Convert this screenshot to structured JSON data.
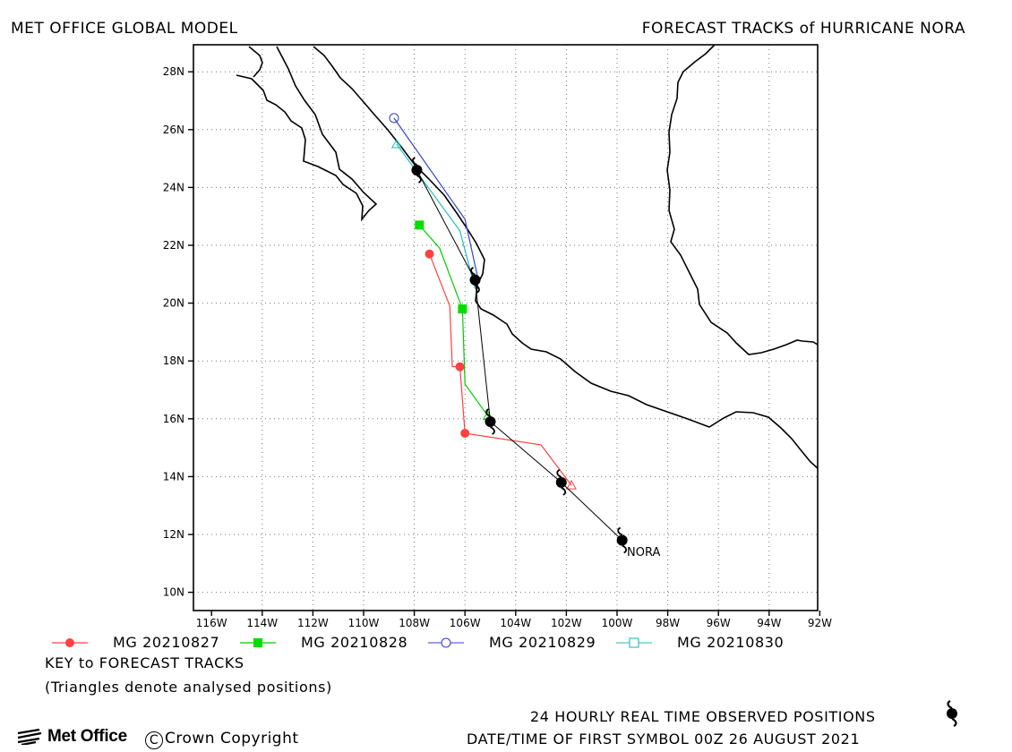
{
  "header": {
    "left": "MET OFFICE GLOBAL MODEL",
    "right": "FORECAST TRACKS of HURRICANE NORA"
  },
  "map": {
    "lon_range": [
      -117,
      -92
    ],
    "lat_range": [
      9.4,
      28.8
    ],
    "lat_ticks": [
      "10N",
      "12N",
      "14N",
      "16N",
      "18N",
      "20N",
      "22N",
      "24N",
      "26N",
      "28N"
    ],
    "lon_ticks": [
      "116W",
      "114W",
      "112W",
      "110W",
      "108W",
      "106W",
      "104W",
      "102W",
      "100W",
      "98W",
      "96W",
      "94W",
      "92W"
    ],
    "storm_label": "NORA",
    "gridlines": "dotted"
  },
  "colors": {
    "mg0827": "#ff4040",
    "mg0828": "#00cc00",
    "mg0829": "#3344cc",
    "mg0830": "#22bbbb",
    "observed": "#000000"
  },
  "observed_positions": [
    {
      "lon": -99.8,
      "lat": 11.8
    },
    {
      "lon": -102.2,
      "lat": 13.8
    },
    {
      "lon": -105.0,
      "lat": 15.9
    },
    {
      "lon": -105.6,
      "lat": 20.8
    },
    {
      "lon": -107.9,
      "lat": 24.6
    }
  ],
  "forecast_tracks": [
    {
      "name": "MG 20210827",
      "symbol": "circle-filled",
      "color_key": "mg0827",
      "points": [
        [
          -101.8,
          13.7
        ],
        [
          -103.0,
          15.1
        ],
        [
          -106.0,
          15.5
        ],
        [
          -106.2,
          17.8
        ],
        [
          -106.5,
          17.8
        ],
        [
          -106.6,
          19.9
        ],
        [
          -107.4,
          21.7
        ]
      ]
    },
    {
      "name": "MG 20210828",
      "symbol": "square-filled",
      "color_key": "mg0828",
      "points": [
        [
          -105.1,
          16.1
        ],
        [
          -106.0,
          17.2
        ],
        [
          -106.1,
          19.8
        ],
        [
          -107.0,
          21.9
        ],
        [
          -107.8,
          22.7
        ]
      ]
    },
    {
      "name": "MG 20210829",
      "symbol": "circle-open",
      "color_key": "mg0829",
      "points": [
        [
          -105.5,
          20.5
        ],
        [
          -105.5,
          20.9
        ],
        [
          -106.0,
          22.9
        ],
        [
          -108.8,
          26.4
        ]
      ]
    },
    {
      "name": "MG 20210830",
      "symbol": "square-open",
      "color_key": "mg0830",
      "points": [
        [
          -105.6,
          20.5
        ],
        [
          -106.2,
          22.5
        ],
        [
          -108.7,
          25.5
        ]
      ]
    }
  ],
  "key": {
    "title": "KEY to FORECAST TRACKS",
    "note": "(Triangles denote analysed positions)"
  },
  "footer": {
    "logo": "Met Office",
    "copyright_symbol": "C",
    "copyright": "Crown Copyright",
    "observed_note": "24 HOURLY REAL TIME OBSERVED POSITIONS",
    "first_symbol": "DATE/TIME OF FIRST SYMBOL 00Z 26 AUGUST 2021"
  }
}
